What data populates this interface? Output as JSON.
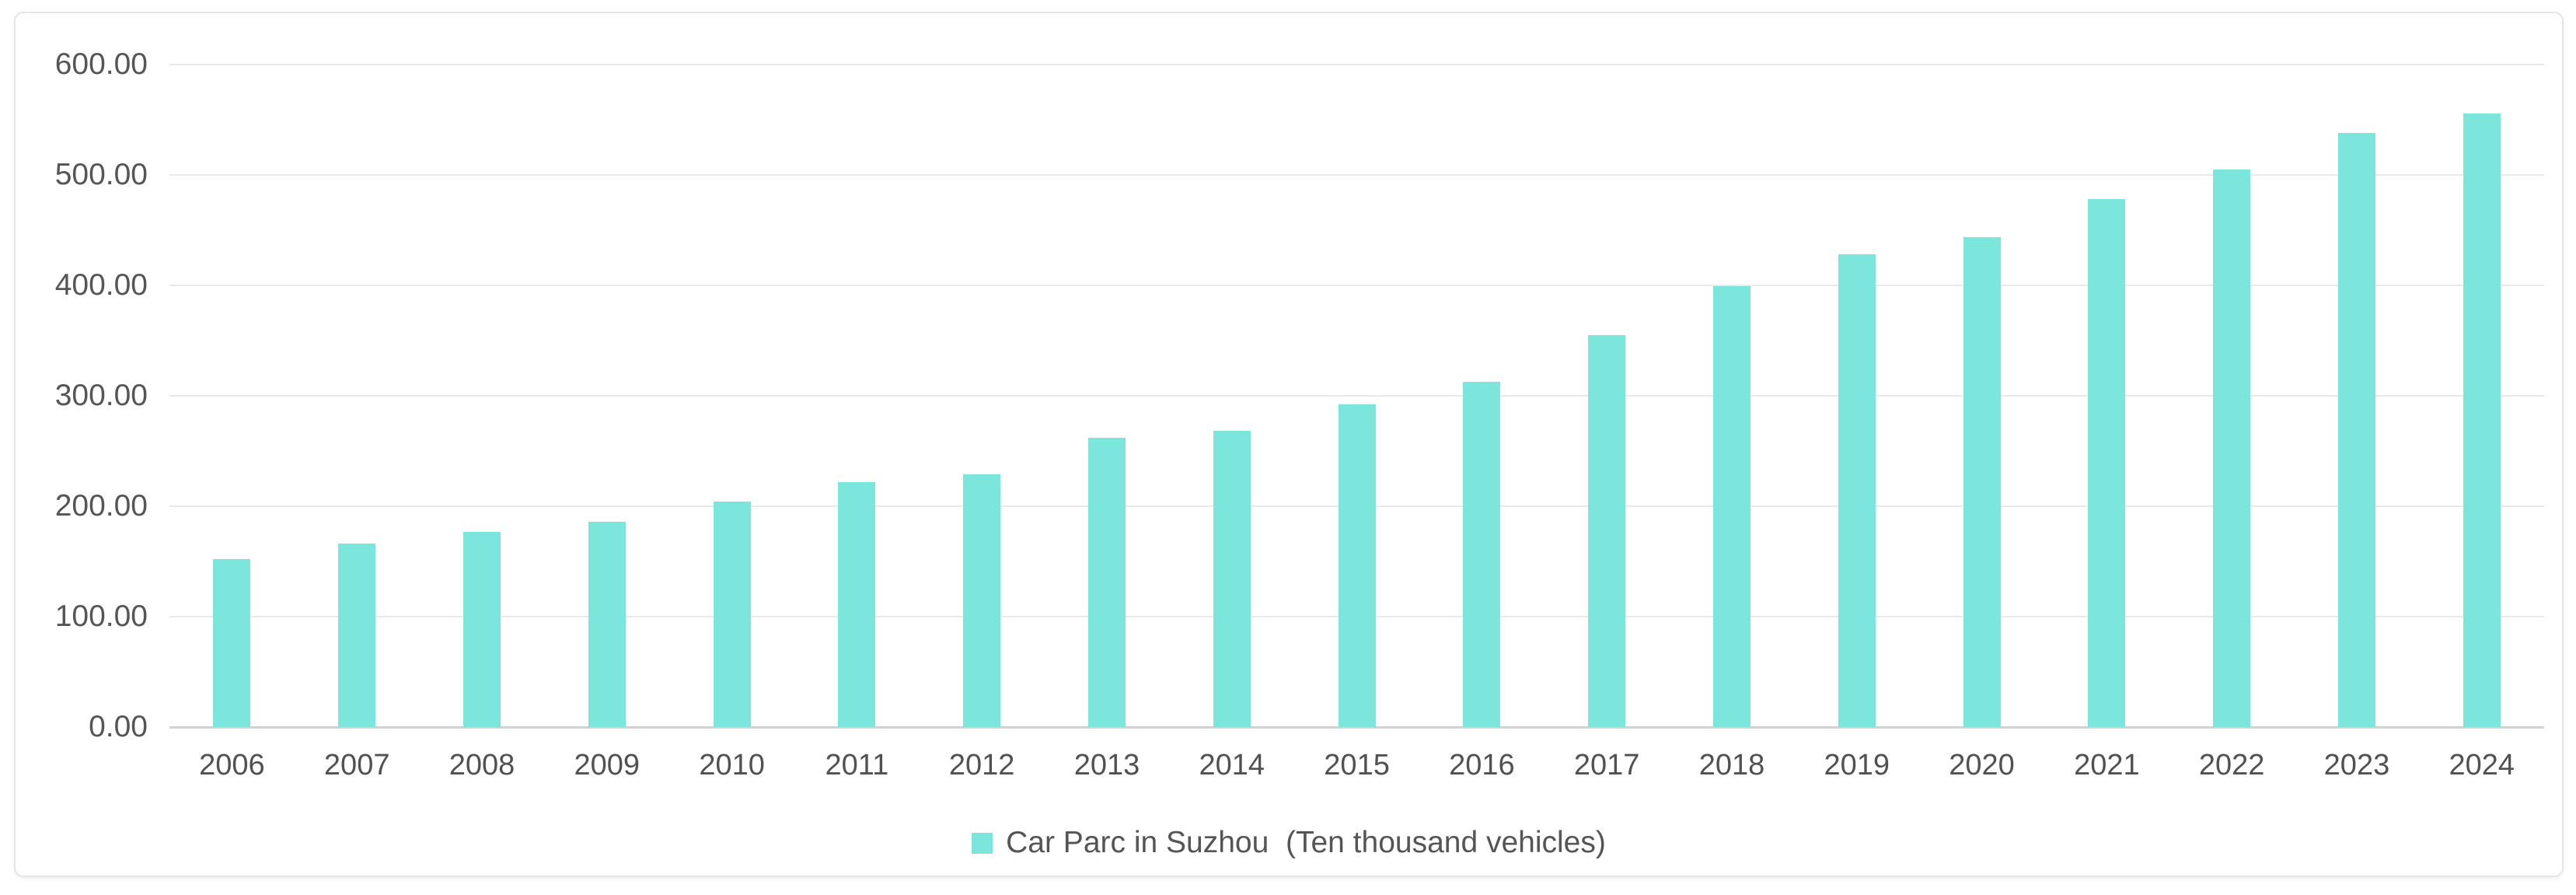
{
  "chart_data": {
    "type": "bar",
    "title": "",
    "xlabel": "",
    "ylabel": "",
    "categories": [
      "2006",
      "2007",
      "2008",
      "2009",
      "2010",
      "2011",
      "2012",
      "2013",
      "2014",
      "2015",
      "2016",
      "2017",
      "2018",
      "2019",
      "2020",
      "2021",
      "2022",
      "2023",
      "2024"
    ],
    "series": [
      {
        "name": "Car Parc in Suzhou  (Ten thousand vehicles)",
        "values": [
          152,
          166,
          177,
          186,
          204,
          222,
          229,
          262,
          268,
          292,
          313,
          355,
          399,
          428,
          444,
          478,
          505,
          538,
          556
        ]
      }
    ],
    "ylim": [
      0,
      600
    ],
    "ytick_labels": [
      "600.00",
      "500.00",
      "400.00",
      "300.00",
      "200.00",
      "100.00",
      "0.00"
    ],
    "grid": "horizontal",
    "legend_position": "bottom-center",
    "bar_color": "#7de6dc",
    "gridline_color": "#e9e9e9",
    "axis_line_color": "#d2d2d2",
    "text_color": "#555555"
  },
  "legend": {
    "label": "Car Parc in Suzhou  (Ten thousand vehicles)",
    "swatch_color": "#7de6dc"
  }
}
